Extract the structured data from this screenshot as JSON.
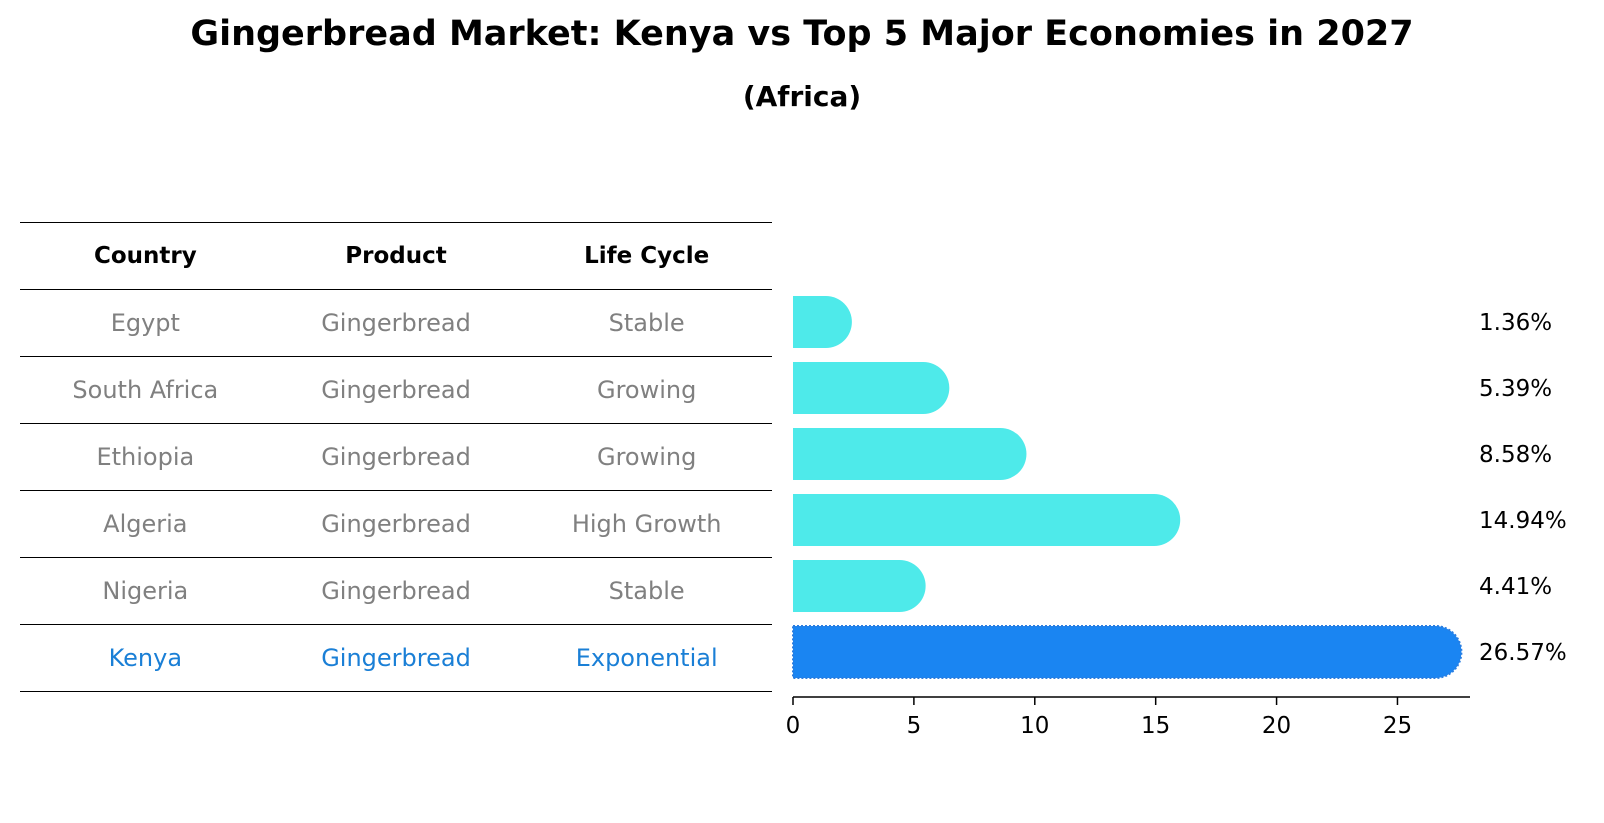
{
  "title": "Gingerbread Market: Kenya vs Top 5 Major Economies in 2027",
  "subtitle": "(Africa)",
  "table": {
    "headers": [
      "Country",
      "Product",
      "Life Cycle"
    ],
    "rows": [
      [
        "Egypt",
        "Gingerbread",
        "Stable"
      ],
      [
        "South Africa",
        "Gingerbread",
        "Growing"
      ],
      [
        "Ethiopia",
        "Gingerbread",
        "Growing"
      ],
      [
        "Algeria",
        "Gingerbread",
        "High Growth"
      ],
      [
        "Nigeria",
        "Gingerbread",
        "Stable"
      ],
      [
        "Kenya",
        "Gingerbread",
        "Exponential"
      ]
    ]
  },
  "chart_data": {
    "type": "bar",
    "orientation": "horizontal",
    "categories": [
      "Egypt",
      "South Africa",
      "Ethiopia",
      "Algeria",
      "Nigeria",
      "Kenya"
    ],
    "values": [
      1.36,
      5.39,
      8.58,
      14.94,
      4.41,
      26.57
    ],
    "value_labels": [
      "1.36%",
      "5.39%",
      "8.58%",
      "14.94%",
      "4.41%",
      "26.57%"
    ],
    "highlight": "Kenya",
    "xlim": [
      0,
      28
    ],
    "xticks": [
      0,
      5,
      10,
      15,
      20,
      25
    ],
    "colors": {
      "default": "#4eeaea",
      "highlight": "#1a85f2"
    }
  }
}
